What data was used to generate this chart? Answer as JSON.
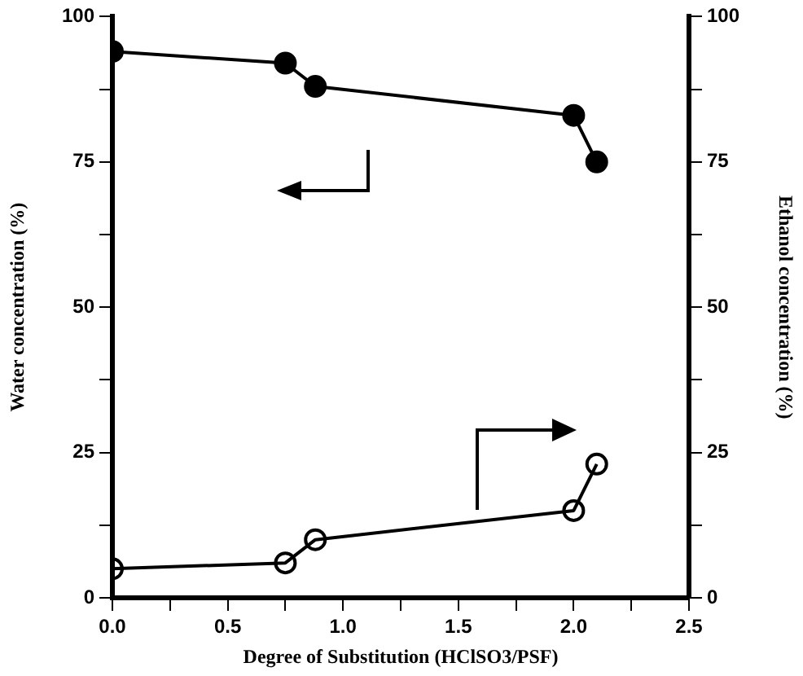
{
  "chart_data": {
    "type": "line",
    "xlabel": "Degree of Substitution (HClSO3/PSF)",
    "ylabel": "Water concentration (%)",
    "y2label": "Ethanol concentration (%)",
    "x": [
      0,
      0.75,
      0.88,
      2.0,
      2.1
    ],
    "series": [
      {
        "color": "#000000",
        "values": [
          94,
          92,
          88,
          83,
          75
        ]
      },
      {
        "color": "#000000",
        "axis": "y2",
        "values": [
          5,
          6,
          10,
          15,
          23
        ]
      }
    ],
    "xlim": [
      0,
      2.5
    ],
    "xticks": [
      {
        "value": 0,
        "label": "0.0"
      },
      {
        "value": 0.25,
        "label": null
      },
      {
        "value": 0.5,
        "label": "0.5"
      },
      {
        "value": 0.75,
        "label": null
      },
      {
        "value": 1,
        "label": "1.0"
      },
      {
        "value": 1.25,
        "label": null
      },
      {
        "value": 1.5,
        "label": "1.5"
      },
      {
        "value": 1.75,
        "label": null
      },
      {
        "value": 2,
        "label": "2.0"
      },
      {
        "value": 2.25,
        "label": null
      },
      {
        "value": 2.5,
        "label": "2.5"
      }
    ],
    "ylim": [
      0,
      100
    ],
    "yticks": [
      0,
      {
        "value": 12.5,
        "label": null
      },
      25,
      {
        "value": 37.5,
        "label": null
      },
      50,
      {
        "value": 62.5,
        "label": null
      },
      75,
      {
        "value": 87.5,
        "label": null
      },
      100
    ],
    "y2lim": [
      0,
      100
    ],
    "y2ticks": [
      0,
      {
        "value": 12.5,
        "label": null
      },
      25,
      {
        "value": 37.5,
        "label": null
      },
      50,
      {
        "value": 62.5,
        "label": null
      },
      75,
      {
        "value": 87.5,
        "label": null
      },
      100
    ],
    "grid": false,
    "legend": false,
    "marker": "circle",
    "line_style": "solid"
  }
}
